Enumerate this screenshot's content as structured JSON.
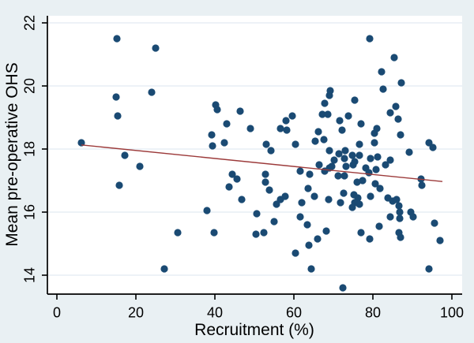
{
  "chart_data": {
    "type": "scatter",
    "title": "",
    "xlabel": "Recruitment (%)",
    "ylabel": "Mean pre-operative OHS",
    "xlim": [
      -2.4,
      102.6
    ],
    "ylim": [
      13.4,
      22.2
    ],
    "x_ticks": [
      0,
      20,
      40,
      60,
      80,
      100
    ],
    "y_ticks": [
      14,
      16,
      18,
      20,
      22
    ],
    "grid": "horizontal",
    "legend": "none",
    "colors": {
      "figure_bg": "#e9f0f3",
      "plot_bg": "#ffffff",
      "grid": "#e2ebf2",
      "axis": "#000000",
      "dot": "#1a4a73",
      "fit_line": "#9c3a3a"
    },
    "fit_line": {
      "x1": 6.2,
      "y1": 18.13,
      "x2": 97.6,
      "y2": 16.97
    },
    "points": [
      [
        6.2,
        18.2
      ],
      [
        15.2,
        21.5
      ],
      [
        25.0,
        21.2
      ],
      [
        24.0,
        19.8
      ],
      [
        15.0,
        19.65
      ],
      [
        15.4,
        19.05
      ],
      [
        17.2,
        17.8
      ],
      [
        21.0,
        17.45
      ],
      [
        15.8,
        16.85
      ],
      [
        30.6,
        15.35
      ],
      [
        27.2,
        14.2
      ],
      [
        38.0,
        16.05
      ],
      [
        39.8,
        15.35
      ],
      [
        40.2,
        19.4
      ],
      [
        40.6,
        19.25
      ],
      [
        43.0,
        18.8
      ],
      [
        39.2,
        18.45
      ],
      [
        39.4,
        18.1
      ],
      [
        42.4,
        18.2
      ],
      [
        43.6,
        16.8
      ],
      [
        44.4,
        17.2
      ],
      [
        45.6,
        17.05
      ],
      [
        46.4,
        19.2
      ],
      [
        49.0,
        18.65
      ],
      [
        46.8,
        16.4
      ],
      [
        50.6,
        15.95
      ],
      [
        50.4,
        15.3
      ],
      [
        52.4,
        15.35
      ],
      [
        52.8,
        17.2
      ],
      [
        52.8,
        16.95
      ],
      [
        53.8,
        16.7
      ],
      [
        53.0,
        18.15
      ],
      [
        54.2,
        17.95
      ],
      [
        55.0,
        15.7
      ],
      [
        55.6,
        16.25
      ],
      [
        56.6,
        18.65
      ],
      [
        58.2,
        18.6
      ],
      [
        56.6,
        16.4
      ],
      [
        57.8,
        16.5
      ],
      [
        58.0,
        18.9
      ],
      [
        59.6,
        19.05
      ],
      [
        60.4,
        18.15
      ],
      [
        60.4,
        14.7
      ],
      [
        61.6,
        17.3
      ],
      [
        61.6,
        15.85
      ],
      [
        62.0,
        16.3
      ],
      [
        63.6,
        16.75
      ],
      [
        63.4,
        15.6
      ],
      [
        64.0,
        17.2
      ],
      [
        64.4,
        14.2
      ],
      [
        63.8,
        14.95
      ],
      [
        65.2,
        16.5
      ],
      [
        65.4,
        18.25
      ],
      [
        66.2,
        18.55
      ],
      [
        67.6,
        18.3
      ],
      [
        67.2,
        19.1
      ],
      [
        68.6,
        19.1
      ],
      [
        67.8,
        19.45
      ],
      [
        69.0,
        19.7
      ],
      [
        69.2,
        19.85
      ],
      [
        69.0,
        17.95
      ],
      [
        66.4,
        17.5
      ],
      [
        67.8,
        17.3
      ],
      [
        69.0,
        17.4
      ],
      [
        68.2,
        15.4
      ],
      [
        66.0,
        15.15
      ],
      [
        68.8,
        16.4
      ],
      [
        69.6,
        17.45
      ],
      [
        70.2,
        17.65
      ],
      [
        71.4,
        17.85
      ],
      [
        73.0,
        17.95
      ],
      [
        72.8,
        17.7
      ],
      [
        74.8,
        17.8
      ],
      [
        75.4,
        17.6
      ],
      [
        76.6,
        17.8
      ],
      [
        73.2,
        17.45
      ],
      [
        75.0,
        17.5
      ],
      [
        71.2,
        17.15
      ],
      [
        72.8,
        17.15
      ],
      [
        72.6,
        16.6
      ],
      [
        71.8,
        16.3
      ],
      [
        75.2,
        16.55
      ],
      [
        76.2,
        16.45
      ],
      [
        75.4,
        16.3
      ],
      [
        76.6,
        16.25
      ],
      [
        74.8,
        16.15
      ],
      [
        72.4,
        13.6
      ],
      [
        73.8,
        19.05
      ],
      [
        75.4,
        19.55
      ],
      [
        71.6,
        18.9
      ],
      [
        72.2,
        18.6
      ],
      [
        76.0,
        16.95
      ],
      [
        77.4,
        17.0
      ],
      [
        77.0,
        15.35
      ],
      [
        76.6,
        18.15
      ],
      [
        79.2,
        21.5
      ],
      [
        80.4,
        18.2
      ],
      [
        79.4,
        17.7
      ],
      [
        81.2,
        17.75
      ],
      [
        78.2,
        17.4
      ],
      [
        79.0,
        17.25
      ],
      [
        80.8,
        17.35
      ],
      [
        80.6,
        16.9
      ],
      [
        81.8,
        16.75
      ],
      [
        79.4,
        16.5
      ],
      [
        79.2,
        15.15
      ],
      [
        81.6,
        15.55
      ],
      [
        77.0,
        18.8
      ],
      [
        80.4,
        18.5
      ],
      [
        81.0,
        18.65
      ],
      [
        82.2,
        20.45
      ],
      [
        82.6,
        19.9
      ],
      [
        85.4,
        20.9
      ],
      [
        87.2,
        20.1
      ],
      [
        85.8,
        19.35
      ],
      [
        84.4,
        19.15
      ],
      [
        86.4,
        18.95
      ],
      [
        83.2,
        17.5
      ],
      [
        84.4,
        17.65
      ],
      [
        83.8,
        16.45
      ],
      [
        85.0,
        16.35
      ],
      [
        86.0,
        16.4
      ],
      [
        84.4,
        15.85
      ],
      [
        86.8,
        16.0
      ],
      [
        86.6,
        16.2
      ],
      [
        86.8,
        15.8
      ],
      [
        86.6,
        15.35
      ],
      [
        87.0,
        18.45
      ],
      [
        89.2,
        17.9
      ],
      [
        87.0,
        15.2
      ],
      [
        92.2,
        17.05
      ],
      [
        92.4,
        16.85
      ],
      [
        90.2,
        15.85
      ],
      [
        89.6,
        16.0
      ],
      [
        94.2,
        18.2
      ],
      [
        95.2,
        18.05
      ],
      [
        95.6,
        15.65
      ],
      [
        97.0,
        15.1
      ],
      [
        94.2,
        14.2
      ]
    ]
  }
}
